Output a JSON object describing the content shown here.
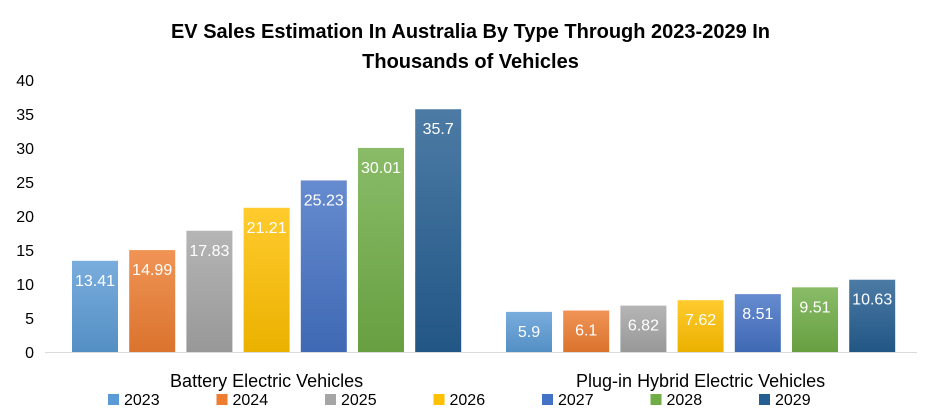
{
  "chart_data": {
    "type": "bar",
    "title_line1": "EV Sales Estimation In Australia By Type Through 2023-2029 In",
    "title_line2": "Thousands of Vehicles",
    "categories": [
      "Battery Electric Vehicles",
      "Plug-in Hybrid Electric Vehicles"
    ],
    "series": [
      {
        "name": "2023",
        "color": "#5B9BD5",
        "values": [
          13.41,
          5.9
        ],
        "labels": [
          "13.41",
          "5.9"
        ]
      },
      {
        "name": "2024",
        "color": "#ED7D31",
        "values": [
          14.99,
          6.1
        ],
        "labels": [
          "14.99",
          "6.1"
        ]
      },
      {
        "name": "2025",
        "color": "#A5A5A5",
        "values": [
          17.83,
          6.82
        ],
        "labels": [
          "17.83",
          "6.82"
        ]
      },
      {
        "name": "2026",
        "color": "#FFC000",
        "values": [
          21.21,
          7.62
        ],
        "labels": [
          "21.21",
          "7.62"
        ]
      },
      {
        "name": "2027",
        "color": "#4472C4",
        "values": [
          25.23,
          8.51
        ],
        "labels": [
          "25.23",
          "8.51"
        ]
      },
      {
        "name": "2028",
        "color": "#70AD47",
        "values": [
          30.01,
          9.51
        ],
        "labels": [
          "30.01",
          "9.51"
        ]
      },
      {
        "name": "2029",
        "color": "#255E91",
        "values": [
          35.7,
          10.63
        ],
        "labels": [
          "35.7",
          "10.63"
        ]
      }
    ],
    "ylim": [
      0,
      40
    ],
    "yticks": [
      "0",
      "5",
      "10",
      "15",
      "20",
      "25",
      "30",
      "35",
      "40"
    ],
    "grid": false,
    "legend_position": "bottom"
  }
}
